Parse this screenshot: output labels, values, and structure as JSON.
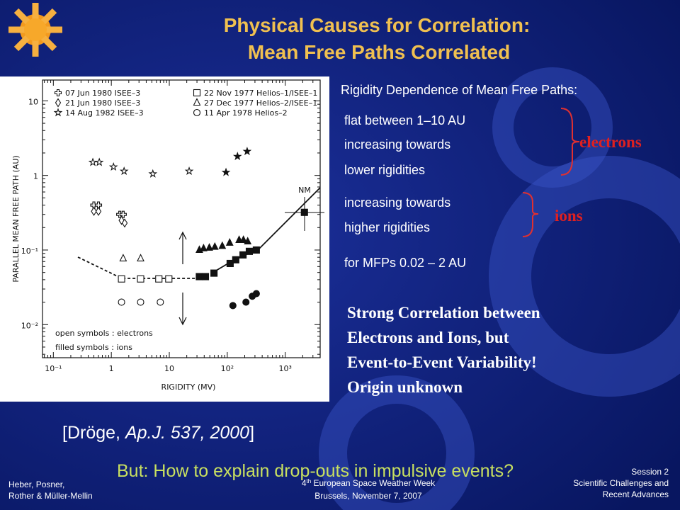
{
  "title": [
    "Physical Causes for Correlation:",
    "Mean Free Paths Correlated"
  ],
  "notes": {
    "heading": "Rigidity Dependence of Mean Free Paths:",
    "electron_lines": [
      "flat between  1–10 AU",
      "increasing towards",
      "lower rigidities"
    ],
    "electron_label": "electrons",
    "ion_lines": [
      "increasing towards",
      "higher rigidities"
    ],
    "ion_label": "ions",
    "range_line": "for MFPs  0.02 – 2 AU",
    "conclusion": [
      "Strong Correlation between",
      "Electrons and Ions, but",
      "Event-to-Event Variability!",
      "Origin unknown"
    ]
  },
  "citation": [
    "[Dröge, ",
    "Ap.J. 537, 2000",
    "]"
  ],
  "question": "But: How to explain drop-outs in impulsive events?",
  "footer": {
    "left": [
      "Heber, Posner,",
      "Rother & Müller-Mellin"
    ],
    "center_sup": "th",
    "center": [
      "4",
      " European Space Weather Week",
      "Brussels, November 7, 2007"
    ],
    "right": [
      "Session 2",
      "Scientific Challenges and",
      "Recent Advances"
    ]
  },
  "chart_data": {
    "type": "scatter",
    "xlabel": "RIGIDITY (MV)",
    "ylabel": "PARALLEL MEAN FREE PATH (AU)",
    "xscale": "log",
    "yscale": "log",
    "xlim": [
      0.065,
      4000
    ],
    "ylim": [
      0.0036,
      19
    ],
    "xticks": [
      {
        "value": 0.1,
        "label": "10⁻¹"
      },
      1,
      10,
      {
        "value": 100,
        "label": "10²"
      },
      {
        "value": 1000,
        "label": "10³"
      }
    ],
    "yticks": [
      {
        "value": 0.01,
        "label": "10⁻²"
      },
      {
        "value": 0.1,
        "label": "10⁻¹"
      },
      1,
      10
    ],
    "annotations": [
      "NM",
      "open symbols : electrons",
      "filled symbols : ions"
    ],
    "series": [
      {
        "name": "07 Jun 1980 ISEE–3",
        "marker": "cross",
        "filled": false,
        "x": [
          0.5,
          0.6,
          1.4,
          1.6
        ],
        "y": [
          0.4,
          0.4,
          0.3,
          0.3
        ]
      },
      {
        "name": "21 Jun 1980 ISEE–3",
        "marker": "diamond",
        "filled": false,
        "x": [
          0.5,
          0.6,
          1.5,
          1.7
        ],
        "y": [
          0.33,
          0.33,
          0.25,
          0.23
        ]
      },
      {
        "name": "14 Aug 1982 ISEE–3",
        "marker": "star",
        "filled": false,
        "x": [
          0.48,
          0.62,
          1.09,
          1.66,
          5.2,
          22
        ],
        "y": [
          1.5,
          1.5,
          1.3,
          1.14,
          1.05,
          1.14
        ]
      },
      {
        "name": "22 Nov 1977 Helios–1/ISEE–1",
        "marker": "square",
        "filled": false,
        "x": [
          1.5,
          3.2,
          6.6,
          9.8
        ],
        "y": [
          0.041,
          0.041,
          0.041,
          0.041
        ]
      },
      {
        "name": "27 Dec 1977 Helios–2/ISEE–1",
        "marker": "triangle",
        "filled": false,
        "x": [
          1.6,
          3.2
        ],
        "y": [
          0.077,
          0.077
        ]
      },
      {
        "name": "11 Apr 1978 Helios–2",
        "marker": "circle",
        "filled": false,
        "x": [
          1.5,
          3.2,
          7.0
        ],
        "y": [
          0.02,
          0.02,
          0.02
        ]
      },
      {
        "marker": "star",
        "filled": true,
        "x": [
          95,
          150,
          220
        ],
        "y": [
          1.1,
          1.8,
          2.1
        ]
      },
      {
        "marker": "square",
        "filled": true,
        "x": [
          33,
          42,
          59,
          112,
          140,
          187,
          240,
          317,
          2140
        ],
        "y": [
          0.044,
          0.044,
          0.049,
          0.066,
          0.074,
          0.086,
          0.096,
          0.1,
          0.32
        ]
      },
      {
        "marker": "triangle",
        "filled": true,
        "x": [
          33,
          39,
          49,
          61,
          82,
          110,
          160,
          190,
          225
        ],
        "y": [
          0.1,
          0.105,
          0.107,
          0.11,
          0.113,
          0.125,
          0.136,
          0.136,
          0.13
        ]
      },
      {
        "marker": "circle",
        "filled": true,
        "x": [
          125,
          210,
          270,
          317
        ],
        "y": [
          0.018,
          0.02,
          0.024,
          0.026
        ]
      }
    ]
  }
}
